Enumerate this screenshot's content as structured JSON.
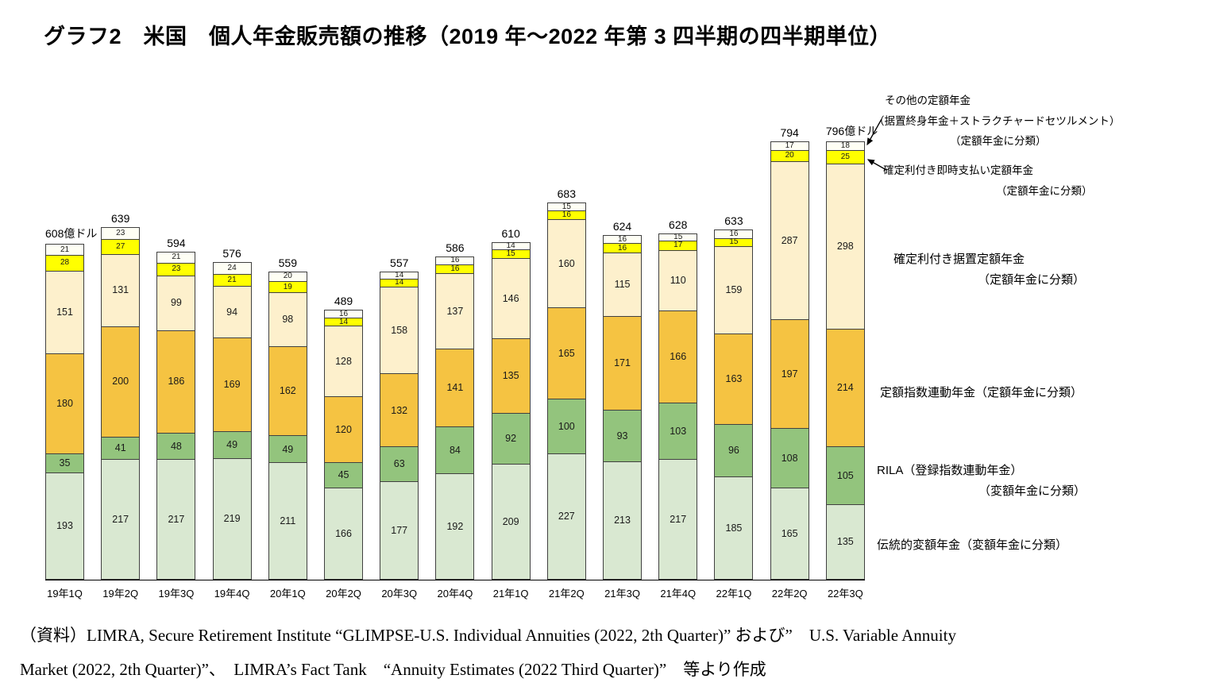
{
  "title": "グラフ2　米国　個人年金販売額の推移（2019 年～2022 年第 3 四半期の四半期単位）",
  "chart_data": {
    "type": "bar",
    "stacked": true,
    "title": "グラフ2　米国　個人年金販売額の推移（2019 年～2022 年第 3 四半期の四半期単位）",
    "xlabel": "",
    "ylabel": "億ドル",
    "ylim": [
      0,
      830
    ],
    "grid": false,
    "legend_position": "right-annotations",
    "categories": [
      "19年1Q",
      "19年2Q",
      "19年3Q",
      "19年4Q",
      "20年1Q",
      "20年2Q",
      "20年3Q",
      "20年4Q",
      "21年1Q",
      "21年2Q",
      "21年3Q",
      "21年4Q",
      "22年1Q",
      "22年2Q",
      "22年3Q"
    ],
    "series": [
      {
        "name": "伝統的変額年金（変額年金に分類）",
        "color": "#d9e8d1",
        "values": [
          193,
          217,
          217,
          219,
          211,
          166,
          177,
          192,
          209,
          227,
          213,
          217,
          185,
          165,
          135
        ]
      },
      {
        "name": "RILA（登録指数連動年金）（変額年金に分類）",
        "color": "#93c47d",
        "values": [
          35,
          41,
          48,
          49,
          49,
          45,
          63,
          84,
          92,
          100,
          93,
          103,
          96,
          108,
          105
        ]
      },
      {
        "name": "定額指数連動年金（定額年金に分類）",
        "color": "#f5c342",
        "values": [
          180,
          200,
          186,
          169,
          162,
          120,
          132,
          141,
          135,
          165,
          171,
          166,
          163,
          197,
          214
        ]
      },
      {
        "name": "確定利付き据置定額年金（定額年金に分類）",
        "color": "#fdf0cc",
        "values": [
          151,
          131,
          99,
          94,
          98,
          128,
          158,
          137,
          146,
          160,
          115,
          110,
          159,
          287,
          298
        ]
      },
      {
        "name": "確定利付き即時支払い定額年金（定額年金に分類）",
        "color": "#ffff00",
        "values": [
          28,
          27,
          23,
          21,
          19,
          14,
          14,
          16,
          15,
          16,
          16,
          17,
          15,
          20,
          25
        ]
      },
      {
        "name": "その他の定額年金（据置終身年金＋ストラクチャードセツルメント）（定額年金に分類）",
        "color": "#fefef4",
        "values": [
          21,
          23,
          21,
          24,
          20,
          16,
          14,
          16,
          14,
          15,
          16,
          15,
          16,
          17,
          18
        ]
      }
    ],
    "totals": [
      608,
      639,
      594,
      576,
      559,
      489,
      557,
      586,
      610,
      683,
      624,
      628,
      633,
      794,
      796
    ],
    "total_labels": [
      "608億ドル",
      "639",
      "594",
      "576",
      "559",
      "489",
      "557",
      "586",
      "610",
      "683",
      "624",
      "628",
      "633",
      "794",
      "796億ドル"
    ],
    "bar_border_color": "#404040"
  },
  "annotations": {
    "other_fixed": {
      "line1": "その他の定額年金",
      "line2": "（据置終身年金＋ストラクチャードセツルメント）",
      "line3": "（定額年金に分類）"
    },
    "immediate_fixed": {
      "line1": "確定利付き即時支払い定額年金",
      "line2": "（定額年金に分類）"
    },
    "deferred_fixed": {
      "line1": "確定利付き据置定額年金",
      "line2": "（定額年金に分類）"
    },
    "fixed_indexed": {
      "line1": "定額指数連動年金（定額年金に分類）"
    },
    "rila": {
      "line1": "RILA（登録指数連動年金）",
      "line2": "（変額年金に分類）"
    },
    "traditional_variable": {
      "line1": "伝統的変額年金（変額年金に分類）"
    }
  },
  "source": {
    "line1": "（資料）LIMRA, Secure Retirement Institute “GLIMPSE-U.S. Individual Annuities (2022, 2th Quarter)” および”　U.S. Variable Annuity",
    "line2": "Market (2022, 2th Quarter)”、　LIMRA’s Fact Tank　“Annuity Estimates (2022 Third Quarter)”　等より作成"
  }
}
